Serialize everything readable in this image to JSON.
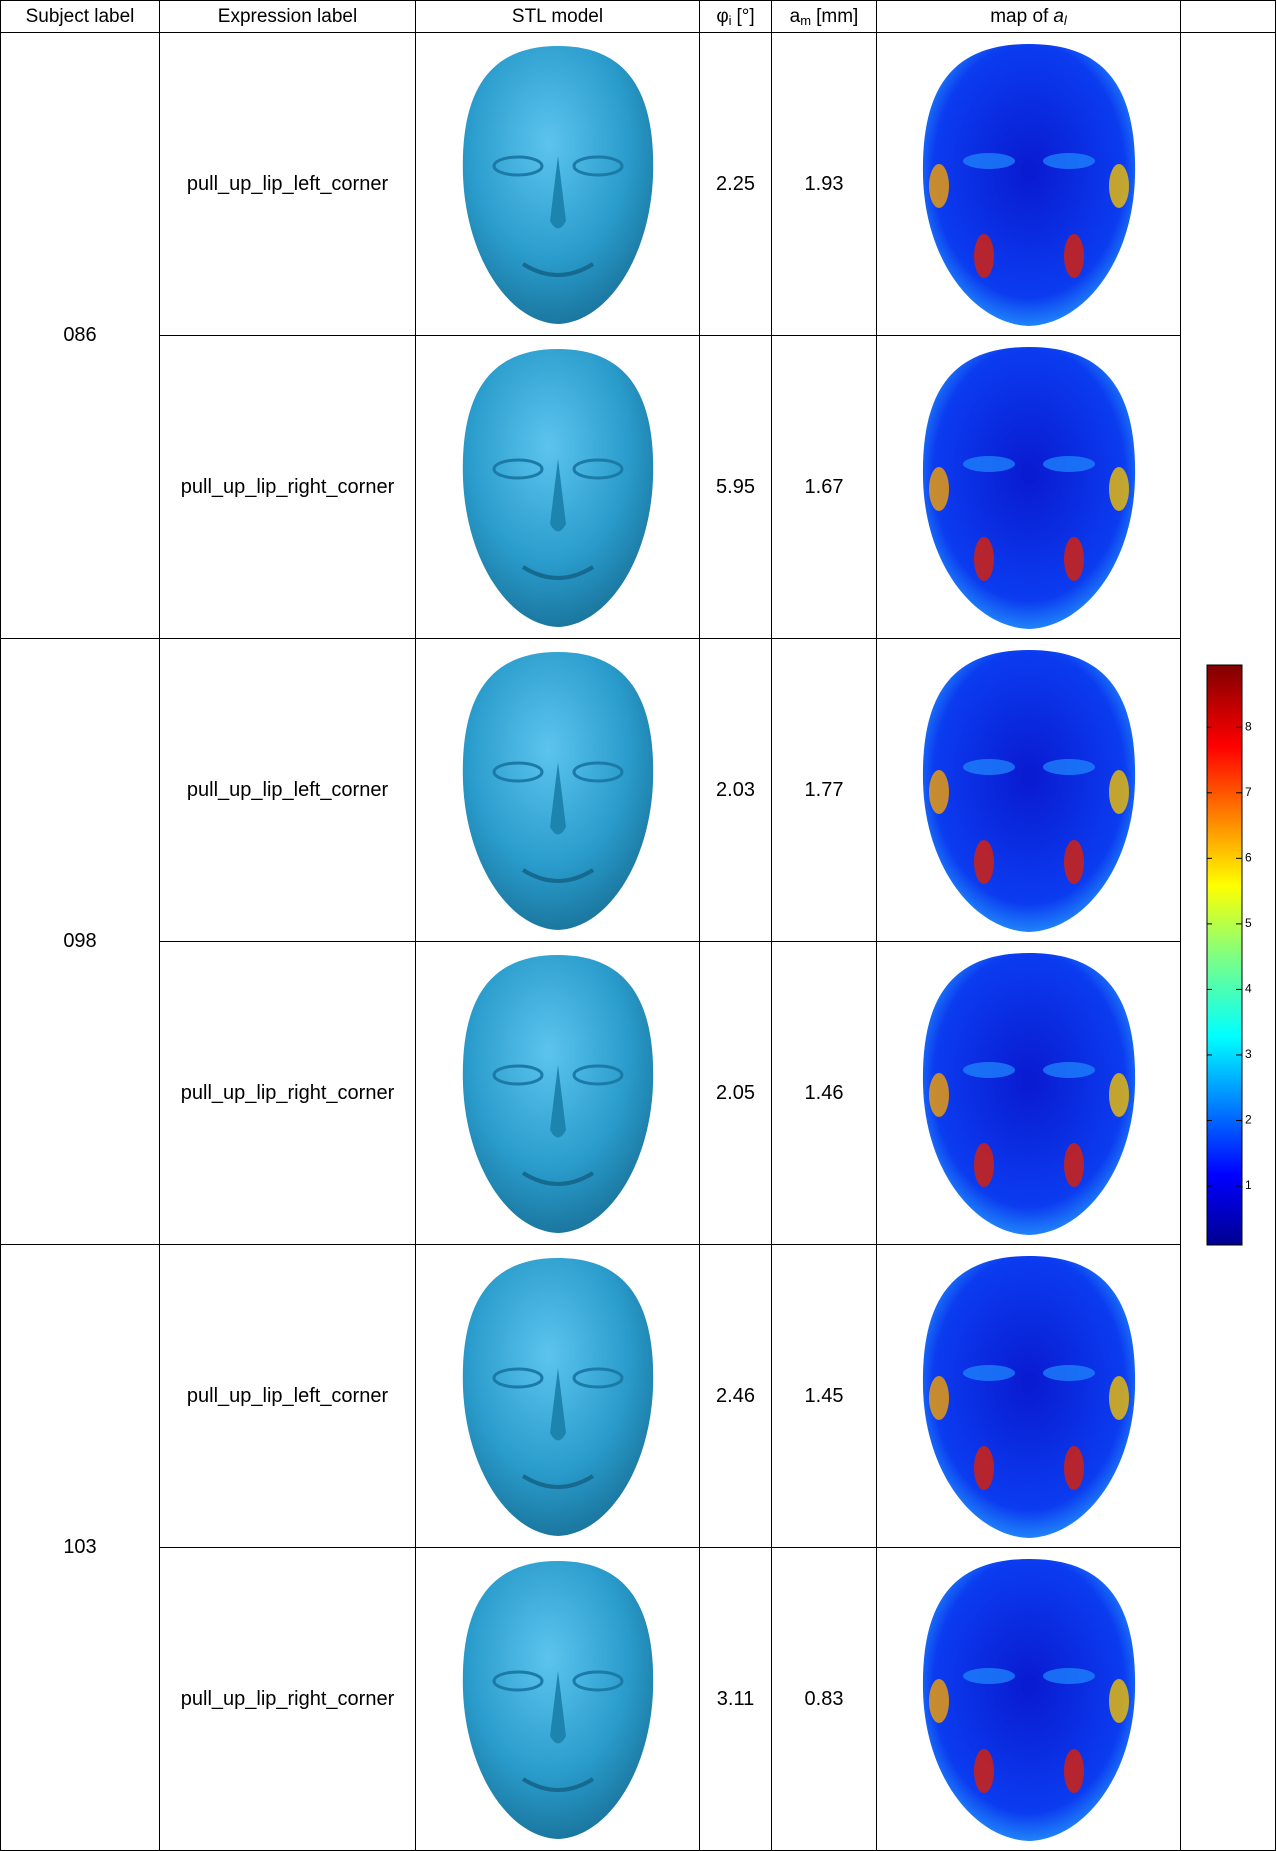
{
  "table": {
    "header": {
      "subject": "Subject label",
      "expression": "Expression label",
      "stl": "STL model",
      "phi": {
        "symbol": "φ",
        "sub": "i",
        "unit": "[°]"
      },
      "am": {
        "symbol": "a",
        "sub": "m",
        "unit": "[mm]"
      },
      "map": {
        "text": "map of",
        "symbol": "a",
        "sub": "l"
      }
    },
    "groups": [
      {
        "subject": "086",
        "rows": [
          {
            "expression": "pull_up_lip_left_corner",
            "phi": 2.25,
            "am": 1.93
          },
          {
            "expression": "pull_up_lip_right_corner",
            "phi": 5.95,
            "am": 1.67
          }
        ]
      },
      {
        "subject": "098",
        "rows": [
          {
            "expression": "pull_up_lip_left_corner",
            "phi": 2.03,
            "am": 1.77
          },
          {
            "expression": "pull_up_lip_right_corner",
            "phi": 2.05,
            "am": 1.46
          }
        ]
      },
      {
        "subject": "103",
        "rows": [
          {
            "expression": "pull_up_lip_left_corner",
            "phi": 2.46,
            "am": 1.45
          },
          {
            "expression": "pull_up_lip_right_corner",
            "phi": 3.11,
            "am": 0.83
          }
        ]
      }
    ]
  },
  "colorbar": {
    "ylim": [
      0.1,
      8.95
    ],
    "ticks": [
      1,
      2,
      3,
      4,
      5,
      6,
      7,
      8
    ]
  }
}
